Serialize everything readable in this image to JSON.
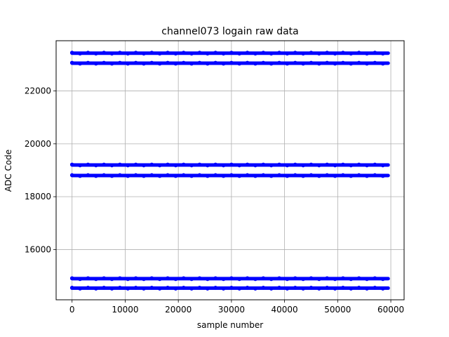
{
  "chart_data": {
    "type": "scatter",
    "title": "channel073 logain raw data",
    "xlabel": "sample number",
    "ylabel": "ADC Code",
    "xlim": [
      -3000,
      62500
    ],
    "ylim": [
      14100,
      23900
    ],
    "xticks": [
      0,
      10000,
      20000,
      30000,
      40000,
      50000,
      60000
    ],
    "yticks": [
      16000,
      18000,
      20000,
      22000
    ],
    "grid": true,
    "legend": "none",
    "marker_color": "#0000ff",
    "series": [
      {
        "x_range": [
          0,
          59500
        ],
        "levels": [
          23430,
          23050,
          19200,
          18800,
          14900,
          14540
        ]
      }
    ]
  }
}
